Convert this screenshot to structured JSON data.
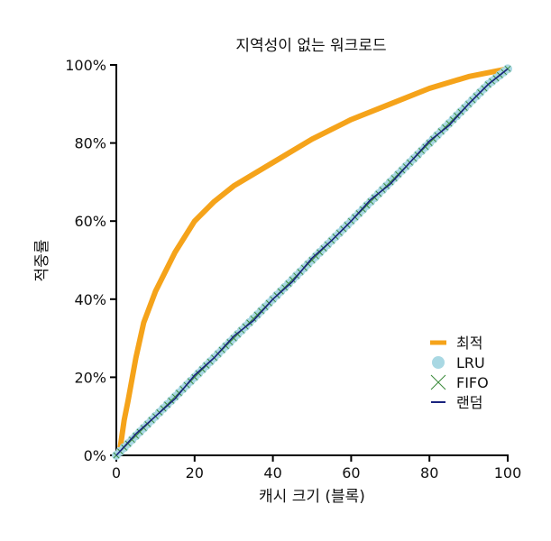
{
  "chart_data": {
    "type": "line",
    "title": "지역성이 없는 워크로드",
    "xlabel": "캐시 크기 (블록)",
    "ylabel": "적중률",
    "xlim": [
      0,
      100
    ],
    "ylim": [
      0,
      100
    ],
    "x_ticks": [
      "0",
      "20",
      "40",
      "60",
      "80",
      "100"
    ],
    "y_ticks": [
      "0%",
      "20%",
      "40%",
      "60%",
      "80%",
      "100%"
    ],
    "grid": false,
    "legend_position": "bottom-right",
    "series": [
      {
        "name": "최적",
        "color": "#f5a31a",
        "style": "thick-line",
        "x": [
          1,
          2,
          3,
          5,
          7,
          10,
          15,
          20,
          25,
          30,
          40,
          50,
          60,
          70,
          80,
          90,
          100
        ],
        "y": [
          2,
          9,
          14,
          25,
          34,
          42,
          52,
          60,
          65,
          69,
          75,
          81,
          86,
          90,
          94,
          97,
          99
        ]
      },
      {
        "name": "LRU",
        "color": "#a9d8e3",
        "style": "circle-markers",
        "x": [
          0,
          5,
          10,
          15,
          20,
          25,
          30,
          35,
          40,
          45,
          50,
          55,
          60,
          65,
          70,
          75,
          80,
          85,
          90,
          95,
          100
        ],
        "y": [
          0,
          5,
          10,
          15,
          20,
          25,
          30,
          35,
          40,
          45,
          50,
          55,
          60,
          65,
          70,
          75,
          80,
          85,
          90,
          95,
          99
        ]
      },
      {
        "name": "FIFO",
        "color": "#3a8a3a",
        "style": "x-markers",
        "x": [
          0,
          5,
          10,
          15,
          20,
          25,
          30,
          35,
          40,
          45,
          50,
          55,
          60,
          65,
          70,
          75,
          80,
          85,
          90,
          95,
          100
        ],
        "y": [
          0,
          5,
          10,
          15,
          20,
          25,
          30,
          35,
          40,
          45,
          50,
          55,
          60,
          65,
          70,
          75,
          80,
          85,
          90,
          95,
          99
        ]
      },
      {
        "name": "랜덤",
        "color": "#1a237e",
        "style": "thin-line",
        "x": [
          0,
          5,
          10,
          15,
          20,
          25,
          30,
          35,
          40,
          45,
          50,
          55,
          60,
          65,
          70,
          75,
          80,
          85,
          90,
          95,
          100
        ],
        "y": [
          0,
          5.5,
          10,
          14.5,
          20.5,
          25,
          30.5,
          34.5,
          40,
          44.5,
          50.5,
          55,
          60,
          65.5,
          69.5,
          75,
          80.5,
          84.5,
          90,
          95,
          99
        ]
      }
    ]
  }
}
